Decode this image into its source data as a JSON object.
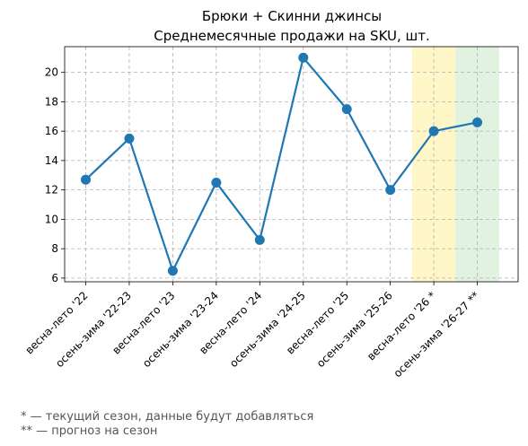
{
  "chart_data": {
    "type": "line",
    "title": "Брюки + Скинни джинсы",
    "subtitle": "Среднемесячные продажи на SKU, шт.",
    "xlabel": "",
    "ylabel": "",
    "categories": [
      "весна-лето '22",
      "осень-зима '22-23",
      "весна-лето '23",
      "осень-зима '23-24",
      "весна-лето '24",
      "осень-зима '24-25",
      "весна-лето '25",
      "осень-зима '25-26",
      "весна-лето '26 *",
      "осень-зима '26-27 **"
    ],
    "series": [
      {
        "values": [
          12.7,
          15.5,
          6.5,
          12.5,
          8.6,
          21.0,
          17.5,
          12.0,
          16.0,
          16.6
        ],
        "color": "#1f77b4"
      }
    ],
    "ylim": [
      5.75,
      21.75
    ],
    "yticks": [
      6,
      8,
      10,
      12,
      14,
      16,
      18,
      20
    ],
    "grid": true,
    "highlights": [
      {
        "category_index": 8,
        "color": "#fff3b0"
      },
      {
        "category_index": 9,
        "color": "#d5ecd4"
      }
    ]
  },
  "footnotes": {
    "current": "* — текущий сезон, данные будут добавляться",
    "forecast": "** — прогноз на сезон"
  }
}
